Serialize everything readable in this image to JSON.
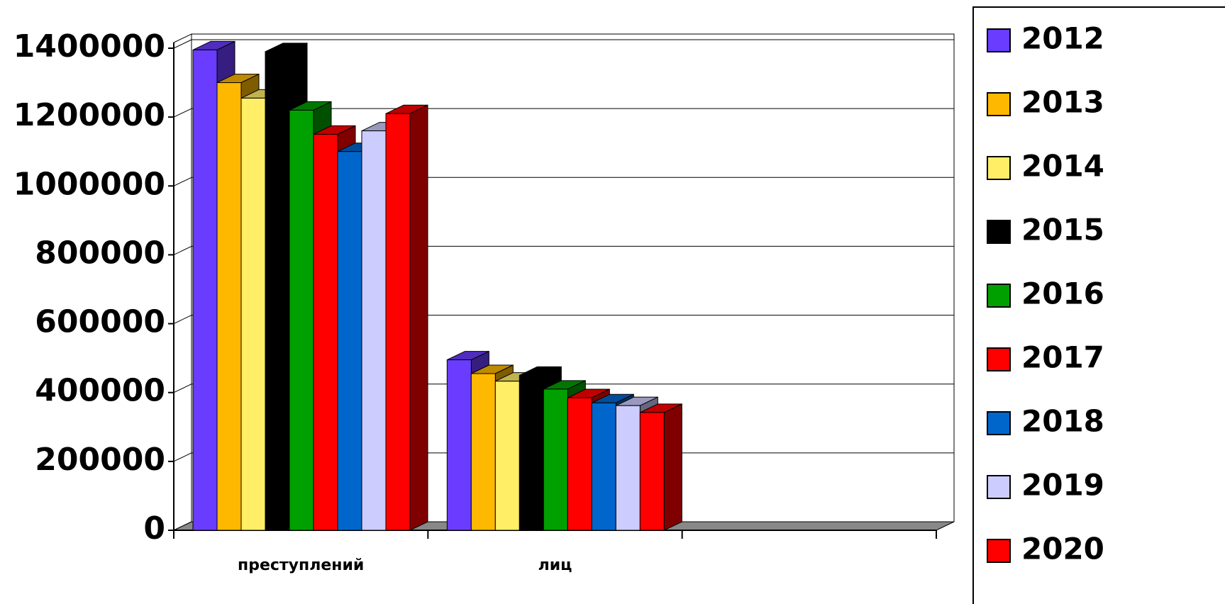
{
  "chart_data": {
    "type": "bar3d",
    "categories": [
      "преступлений",
      "лиц",
      null
    ],
    "series": [
      {
        "name": "2012",
        "color": "#6a3cff",
        "values": [
          1395000,
          495000,
          null
        ]
      },
      {
        "name": "2013",
        "color": "#ffb800",
        "values": [
          1300000,
          455000,
          null
        ]
      },
      {
        "name": "2014",
        "color": "#ffee66",
        "values": [
          1255000,
          433000,
          null
        ]
      },
      {
        "name": "2015",
        "color": "#000000",
        "values": [
          1390000,
          450000,
          null
        ]
      },
      {
        "name": "2016",
        "color": "#00a000",
        "values": [
          1220000,
          410000,
          null
        ]
      },
      {
        "name": "2017",
        "color": "#ff0000",
        "values": [
          1150000,
          385000,
          null
        ]
      },
      {
        "name": "2018",
        "color": "#0066cc",
        "values": [
          1100000,
          370000,
          null
        ]
      },
      {
        "name": "2019",
        "color": "#ccccff",
        "values": [
          1160000,
          362000,
          null
        ]
      },
      {
        "name": "2020",
        "color": "#ff0000",
        "values": [
          1210000,
          342000,
          null
        ]
      }
    ],
    "ylim": [
      0,
      1400000
    ],
    "yticks": [
      0,
      200000,
      400000,
      600000,
      800000,
      1000000,
      1200000,
      1400000
    ],
    "grid": true,
    "legend": "right"
  }
}
